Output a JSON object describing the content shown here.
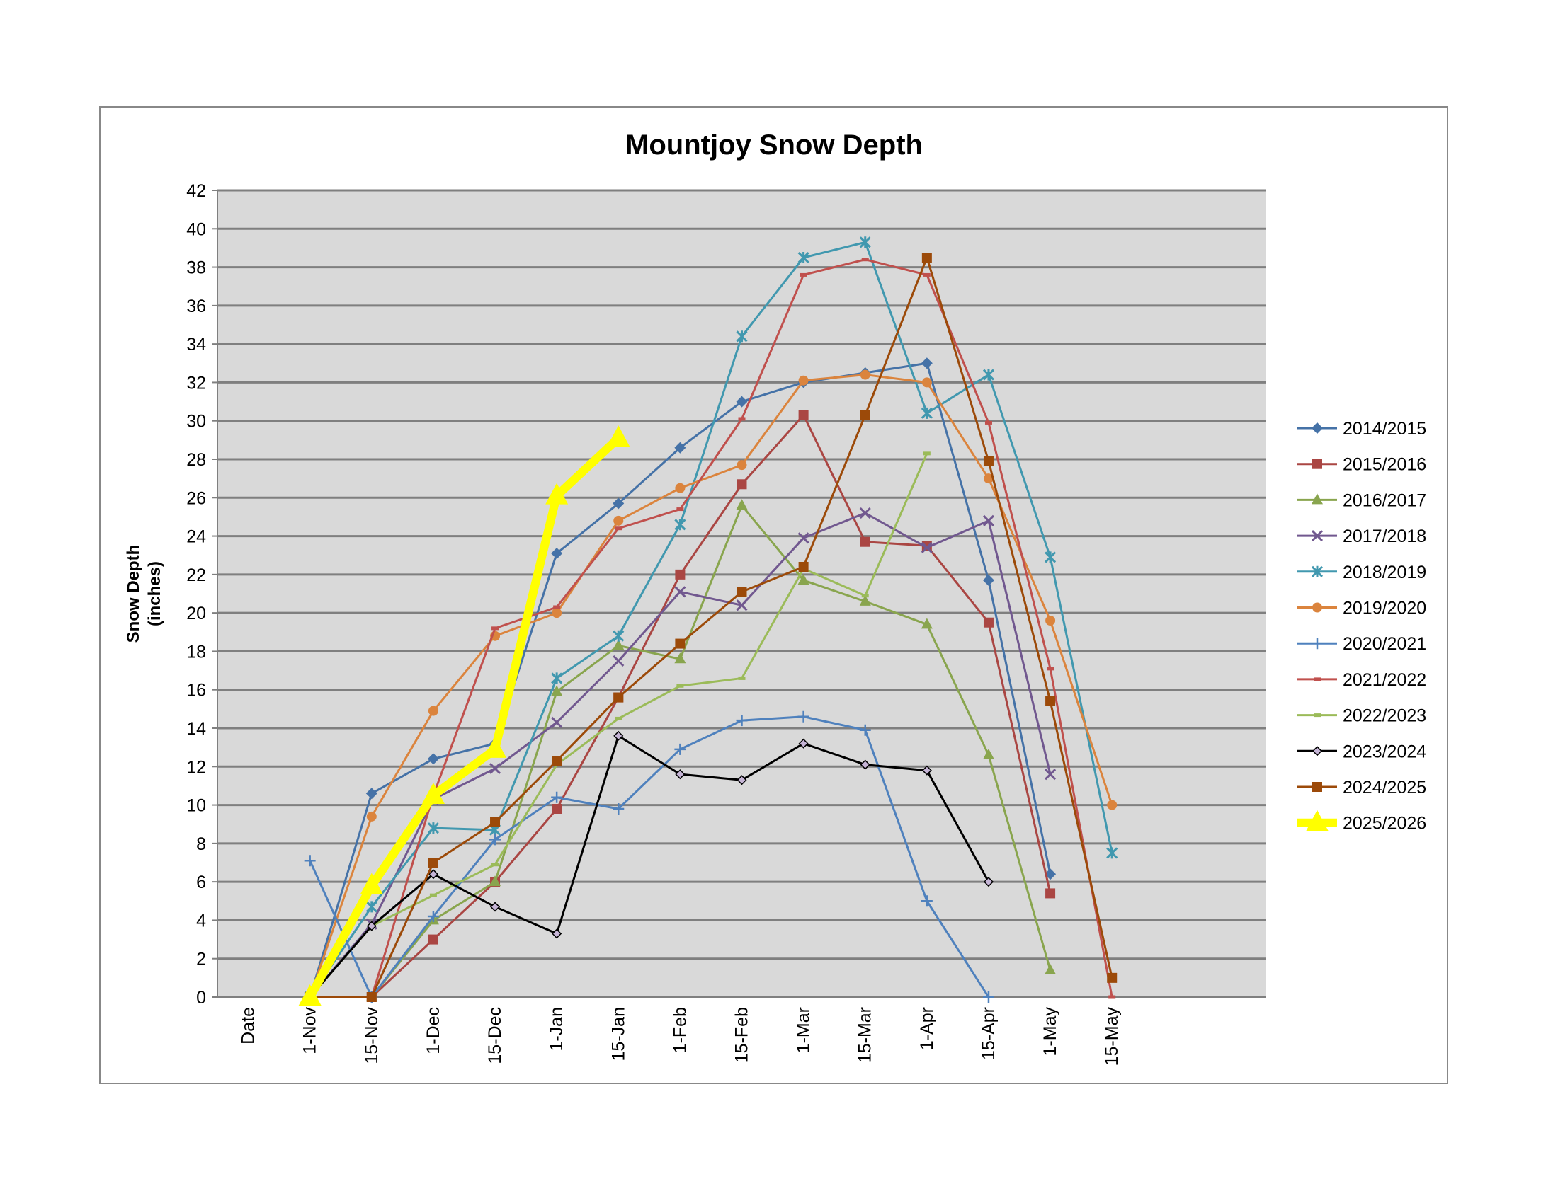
{
  "chart_data": {
    "type": "line",
    "title": "Mountjoy Snow Depth",
    "y_label": [
      "Snow Depth",
      "(inches)"
    ],
    "categories": [
      "Date",
      "1-Nov",
      "15-Nov",
      "1-Dec",
      "15-Dec",
      "1-Jan",
      "15-Jan",
      "1-Feb",
      "15-Feb",
      "1-Mar",
      "15-Mar",
      "1-Apr",
      "15-Apr",
      "1-May",
      "15-May",
      null
    ],
    "ylim": [
      0,
      42
    ],
    "yticks": [
      0,
      2,
      4,
      6,
      8,
      10,
      12,
      14,
      16,
      18,
      20,
      22,
      24,
      26,
      28,
      30,
      32,
      34,
      36,
      38,
      40,
      42
    ],
    "grid": true,
    "legend": "right",
    "series": [
      {
        "name": "2014/2015",
        "color": "#4572a7",
        "marker": "diamond",
        "values": [
          null,
          0,
          10.6,
          12.4,
          13.2,
          23.1,
          25.7,
          28.6,
          31,
          32,
          32.5,
          33,
          21.7,
          6.4,
          null,
          null
        ]
      },
      {
        "name": "2015/2016",
        "color": "#aa4643",
        "marker": "square",
        "values": [
          null,
          0,
          0,
          3,
          6,
          9.8,
          15.6,
          22,
          26.7,
          30.3,
          23.7,
          23.5,
          19.5,
          5.4,
          null,
          null
        ]
      },
      {
        "name": "2016/2017",
        "color": "#89a54e",
        "marker": "triangle",
        "values": [
          null,
          0,
          0,
          4,
          6,
          15.9,
          18.3,
          17.6,
          25.6,
          21.7,
          20.6,
          19.4,
          12.6,
          1.4,
          null,
          null
        ]
      },
      {
        "name": "2017/2018",
        "color": "#71588f",
        "marker": "x",
        "values": [
          null,
          0,
          3.8,
          10.3,
          11.9,
          14.3,
          17.5,
          21.1,
          20.4,
          23.9,
          25.2,
          23.4,
          24.8,
          11.6,
          null,
          null
        ]
      },
      {
        "name": "2018/2019",
        "color": "#4198af",
        "marker": "star",
        "values": [
          null,
          0,
          4.7,
          8.8,
          8.7,
          16.6,
          18.8,
          24.6,
          34.4,
          38.5,
          39.3,
          30.4,
          32.4,
          22.9,
          7.5,
          null
        ]
      },
      {
        "name": "2019/2020",
        "color": "#db843d",
        "marker": "circle",
        "values": [
          null,
          0,
          9.4,
          14.9,
          18.8,
          20,
          24.8,
          26.5,
          27.7,
          32.1,
          32.4,
          32,
          27,
          19.6,
          10,
          null
        ]
      },
      {
        "name": "2020/2021",
        "color": "#4f81bd",
        "marker": "plus",
        "values": [
          null,
          7.1,
          0,
          4.2,
          8.2,
          10.4,
          9.8,
          12.9,
          14.4,
          14.6,
          13.9,
          5,
          0,
          null,
          null,
          null
        ]
      },
      {
        "name": "2021/2022",
        "color": "#c0504d",
        "marker": "dash",
        "values": [
          null,
          0,
          0,
          10.5,
          19.2,
          20.3,
          24.4,
          25.4,
          30.1,
          37.6,
          38.4,
          37.6,
          29.9,
          17.1,
          0,
          null
        ]
      },
      {
        "name": "2022/2023",
        "color": "#9bbb59",
        "marker": "dash",
        "values": [
          null,
          0,
          3.7,
          5.3,
          6.9,
          12.1,
          14.5,
          16.2,
          16.6,
          22.3,
          20.9,
          28.3,
          null,
          null,
          null,
          null
        ]
      },
      {
        "name": "2023/2024",
        "color": "#000000",
        "marker": "smalldiamond",
        "values": [
          null,
          0,
          3.7,
          6.4,
          4.7,
          3.3,
          13.6,
          11.6,
          11.3,
          13.2,
          12.1,
          11.8,
          6,
          null,
          null,
          null
        ]
      },
      {
        "name": "2024/2025",
        "color": "#9c4a09",
        "marker": "square",
        "values": [
          null,
          0,
          0,
          7,
          9.1,
          12.3,
          15.6,
          18.4,
          21.1,
          22.4,
          30.3,
          38.5,
          27.9,
          15.4,
          1,
          null
        ]
      },
      {
        "name": "2025/2026",
        "color": "#ffff00",
        "marker": "bigtriangle",
        "values": [
          null,
          0,
          5.8,
          10.5,
          12.9,
          26.1,
          29.1,
          null,
          null,
          null,
          null,
          null,
          null,
          null,
          null,
          null
        ]
      }
    ]
  }
}
